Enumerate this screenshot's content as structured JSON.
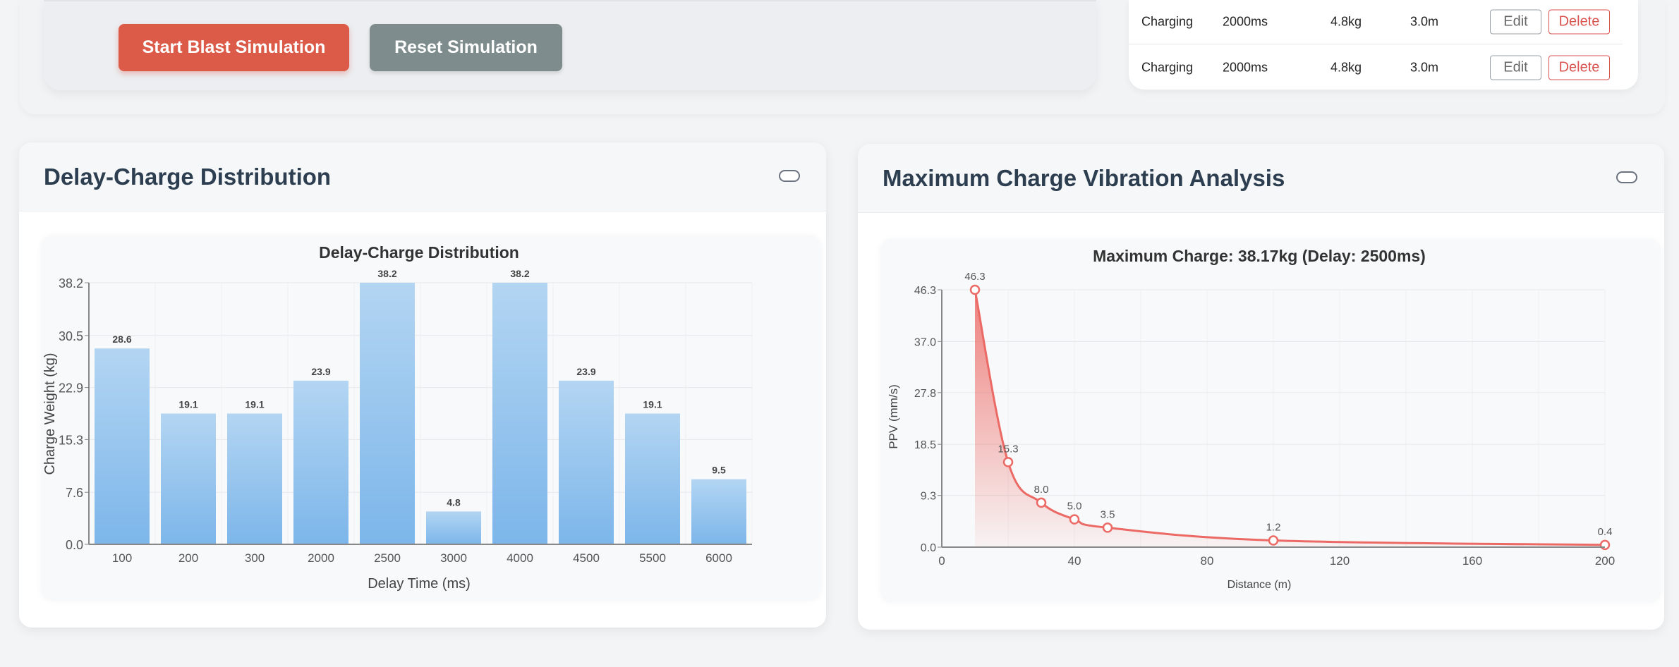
{
  "controls": {
    "start_label": "Start Blast Simulation",
    "reset_label": "Reset Simulation"
  },
  "table": {
    "rows": [
      {
        "status": "Charging",
        "delay": "2000ms",
        "charge": "4.8kg",
        "distance": "3.0m",
        "edit_label": "Edit",
        "delete_label": "Delete"
      },
      {
        "status": "Charging",
        "delay": "2000ms",
        "charge": "4.8kg",
        "distance": "3.0m",
        "edit_label": "Edit",
        "delete_label": "Delete"
      }
    ]
  },
  "panels": {
    "left_title": "Delay-Charge Distribution",
    "right_title": "Maximum Charge Vibration Analysis"
  },
  "colors": {
    "start_button": "#dc5a48",
    "reset_button": "#7f8c8d",
    "bar_top": "#b3d5f2",
    "bar_bottom": "#7cb6ea",
    "curve": "#ec6a65",
    "delete_accent": "#d9534f"
  },
  "chart_data": [
    {
      "type": "bar",
      "title": "Delay-Charge Distribution",
      "xlabel": "Delay Time (ms)",
      "ylabel": "Charge Weight (kg)",
      "categories": [
        "100",
        "200",
        "300",
        "2000",
        "2500",
        "3000",
        "4000",
        "4500",
        "5500",
        "6000"
      ],
      "values": [
        28.6,
        19.1,
        19.1,
        23.9,
        38.2,
        4.8,
        38.2,
        23.9,
        19.1,
        9.5
      ],
      "data_labels": [
        "28.6",
        "19.1",
        "19.1",
        "23.9",
        "38.2",
        "4.8",
        "38.2",
        "23.9",
        "19.1",
        "9.5"
      ],
      "y_ticks": [
        "0.0",
        "7.6",
        "15.3",
        "22.9",
        "30.5",
        "38.2"
      ],
      "ylim": [
        0,
        38.2
      ],
      "grid": true,
      "legend": "none"
    },
    {
      "type": "line",
      "title": "Maximum Charge: 38.17kg (Delay: 2500ms)",
      "xlabel": "Distance (m)",
      "ylabel": "PPV (mm/s)",
      "x": [
        10,
        20,
        30,
        40,
        50,
        100,
        200
      ],
      "y": [
        46.3,
        15.3,
        8.0,
        5.0,
        3.5,
        1.2,
        0.4
      ],
      "data_labels": [
        "46.3",
        "15.3",
        "8.0",
        "5.0",
        "3.5",
        "1.2",
        "0.4"
      ],
      "x_ticks": [
        "0",
        "40",
        "80",
        "120",
        "160",
        "200"
      ],
      "y_ticks": [
        "0.0",
        "9.3",
        "18.5",
        "27.8",
        "37.0",
        "46.3"
      ],
      "xlim": [
        0,
        200
      ],
      "ylim": [
        0,
        46.3
      ],
      "fill": true,
      "grid": true,
      "legend": "none"
    }
  ]
}
